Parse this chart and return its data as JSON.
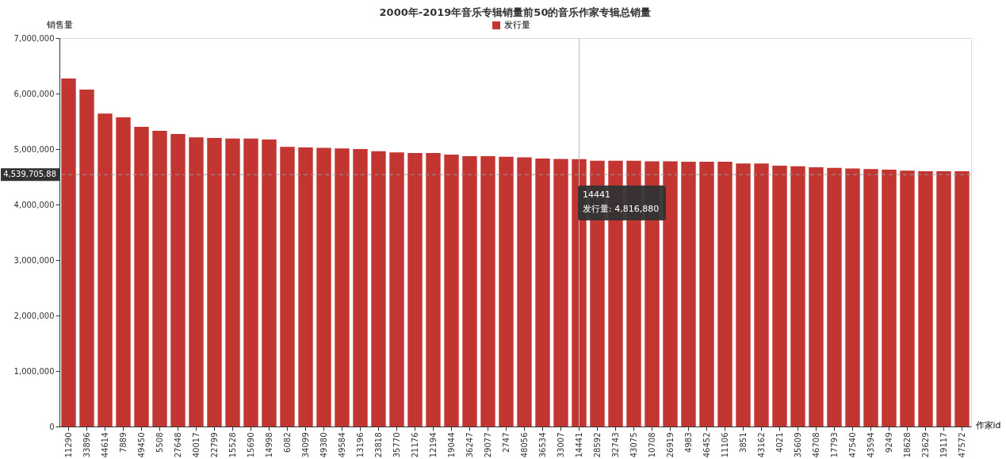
{
  "chart_data": {
    "type": "bar",
    "title": "2000年-2019年音乐专辑销量前50的音乐作家专辑总销量",
    "xlabel": "作家id",
    "ylabel": "销售量",
    "categories": [
      "11290",
      "33896",
      "44614",
      "7889",
      "49450",
      "5508",
      "27648",
      "40017",
      "22799",
      "15528",
      "15690",
      "14998",
      "6082",
      "34099",
      "49380",
      "49584",
      "13196",
      "23818",
      "35770",
      "21176",
      "12194",
      "19044",
      "36247",
      "29077",
      "2747",
      "48056",
      "36534",
      "33007",
      "14441",
      "28592",
      "32743",
      "43075",
      "10708",
      "26919",
      "4983",
      "46452",
      "11106",
      "3851",
      "43162",
      "4021",
      "35609",
      "46708",
      "17793",
      "47540",
      "43594",
      "9249",
      "18628",
      "23629",
      "19117",
      "47572"
    ],
    "series": [
      {
        "name": "发行量",
        "color": "#c23531",
        "values": [
          6270000,
          6070000,
          5640000,
          5570000,
          5400000,
          5330000,
          5270000,
          5210000,
          5200000,
          5190000,
          5190000,
          5170000,
          5040000,
          5030000,
          5020000,
          5010000,
          5000000,
          4960000,
          4940000,
          4930000,
          4930000,
          4900000,
          4870000,
          4870000,
          4860000,
          4850000,
          4830000,
          4820000,
          4816880,
          4790000,
          4790000,
          4790000,
          4780000,
          4780000,
          4770000,
          4770000,
          4770000,
          4740000,
          4740000,
          4700000,
          4690000,
          4670000,
          4660000,
          4650000,
          4640000,
          4630000,
          4610000,
          4600000,
          4600000,
          4600000
        ]
      }
    ],
    "ylim": [
      0,
      7000000
    ],
    "yticks": [
      0,
      {
        "value": 1000000,
        "label": "1,000,000"
      },
      {
        "value": 2000000,
        "label": "2,000,000"
      },
      {
        "value": 3000000,
        "label": "3,000,000"
      },
      {
        "value": 4000000,
        "label": "4,000,000"
      },
      {
        "value": 5000000,
        "label": "5,000,000"
      },
      {
        "value": 6000000,
        "label": "6,000,000"
      },
      {
        "value": 7000000,
        "label": "7,000,000"
      }
    ],
    "ref_lines": [
      {
        "axis": "y",
        "value": 4539705.88,
        "label": "4,539,705.88",
        "color": "#999999",
        "line_style": "dashed"
      },
      {
        "axis": "x",
        "value": "14441",
        "color": "#bbbbbb",
        "line_style": "solid"
      }
    ],
    "annotations": [
      "14441\n发行量: 4,816,880"
    ],
    "grid": false,
    "legend": "top"
  }
}
